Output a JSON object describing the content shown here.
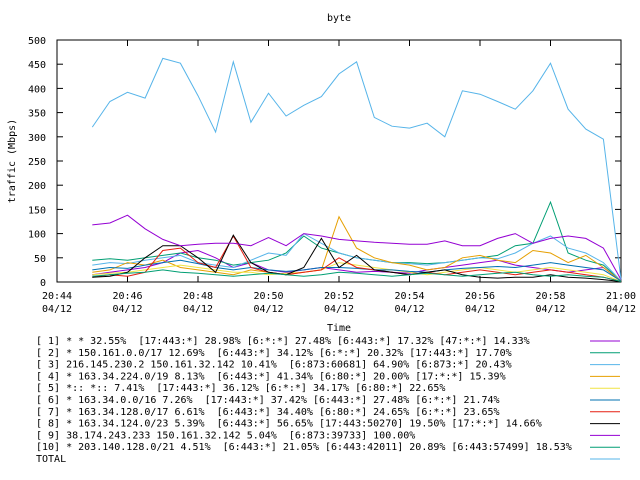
{
  "chart_data": {
    "type": "line",
    "title": "byte",
    "x_label": "Time",
    "y_label": "traffic (Mbps)",
    "x": [
      1245,
      1245.5,
      1246,
      1246.5,
      1247,
      1247.5,
      1248,
      1248.5,
      1249,
      1249.5,
      1250,
      1250.5,
      1251,
      1251.5,
      1252,
      1252.5,
      1253,
      1253.5,
      1254,
      1254.5,
      1255,
      1255.5,
      1256,
      1256.5,
      1257,
      1257.5,
      1258,
      1258.5,
      1259,
      1259.5,
      1260
    ],
    "xlim": [
      1244,
      1260
    ],
    "xticks": [
      {
        "value": 1244,
        "label": "20:44\n04/12"
      },
      {
        "value": 1246,
        "label": "20:46\n04/12"
      },
      {
        "value": 1248,
        "label": "20:48\n04/12"
      },
      {
        "value": 1250,
        "label": "20:50\n04/12"
      },
      {
        "value": 1252,
        "label": "20:52\n04/12"
      },
      {
        "value": 1254,
        "label": "20:54\n04/12"
      },
      {
        "value": 1256,
        "label": "20:56\n04/12"
      },
      {
        "value": 1258,
        "label": "20:58\n04/12"
      },
      {
        "value": 1260,
        "label": "21:00\n04/12"
      }
    ],
    "ylim": [
      0,
      500
    ],
    "yticks": [
      0,
      50,
      100,
      150,
      200,
      250,
      300,
      350,
      400,
      450,
      500
    ],
    "series": [
      {
        "name": "[ 1] * * 32.55%  [17:443:*] 28.98% [6:*:*] 27.48% [6:443:*] 17.32% [47:*:*] 14.33%",
        "color": "#9400d3",
        "values": [
          15,
          20,
          25,
          30,
          40,
          60,
          65,
          50,
          30,
          40,
          25,
          20,
          25,
          30,
          25,
          20,
          22,
          20,
          18,
          25,
          30,
          35,
          40,
          45,
          35,
          30,
          25,
          20,
          25,
          30,
          2
        ]
      },
      {
        "name": "[ 2] * 150.161.0.0/17 12.69%  [6:443:*] 34.12% [6:*:*] 20.32% [17:443:*] 17.70%",
        "color": "#009e73",
        "values": [
          45,
          48,
          45,
          50,
          55,
          60,
          50,
          45,
          35,
          40,
          45,
          60,
          95,
          70,
          60,
          50,
          45,
          40,
          40,
          38,
          40,
          45,
          50,
          55,
          75,
          80,
          165,
          60,
          45,
          35,
          2
        ]
      },
      {
        "name": "[ 3] 216.145.230.2 150.161.32.142 10.41%  [6:873:60681] 64.90% [6:873:*] 20.43%",
        "color": "#56b4e9",
        "values": [
          35,
          40,
          38,
          45,
          50,
          55,
          40,
          35,
          30,
          45,
          60,
          55,
          100,
          80,
          60,
          50,
          45,
          40,
          38,
          35,
          40,
          45,
          50,
          48,
          60,
          80,
          95,
          70,
          60,
          40,
          2
        ]
      },
      {
        "name": "[ 4] * 163.34.224.0/19 8.13%  [6:443:*] 41.34% [6:80:*] 20.00% [17:*:*] 15.39%",
        "color": "#e69f00",
        "values": [
          20,
          25,
          40,
          35,
          45,
          30,
          25,
          20,
          15,
          25,
          20,
          15,
          20,
          25,
          135,
          70,
          50,
          40,
          35,
          25,
          30,
          50,
          55,
          45,
          40,
          65,
          60,
          40,
          55,
          30,
          2
        ]
      },
      {
        "name": "[ 5] *:: *:: 7.41%  [17:443:*] 36.12% [6:*:*] 34.17% [6:80:*] 22.65%",
        "color": "#f0e442",
        "values": [
          15,
          18,
          20,
          25,
          30,
          35,
          30,
          25,
          20,
          20,
          15,
          18,
          20,
          25,
          40,
          35,
          30,
          25,
          20,
          15,
          20,
          25,
          30,
          25,
          20,
          25,
          30,
          25,
          20,
          15,
          1
        ]
      },
      {
        "name": "[ 6] * 163.34.0.0/16 7.26%  [17:443:*] 37.42% [6:443:*] 27.48% [6:*:*] 21.74%",
        "color": "#0072b2",
        "values": [
          25,
          30,
          28,
          35,
          40,
          45,
          38,
          30,
          25,
          30,
          25,
          22,
          25,
          30,
          30,
          28,
          25,
          25,
          22,
          20,
          25,
          28,
          30,
          32,
          30,
          35,
          40,
          35,
          30,
          25,
          2
        ]
      },
      {
        "name": "[ 7] * 163.34.128.0/17 6.61%  [6:443:*] 34.40% [6:80:*] 24.65% [6:*:*] 23.65%",
        "color": "#e51e10",
        "values": [
          10,
          15,
          12,
          20,
          65,
          70,
          40,
          30,
          95,
          30,
          20,
          15,
          20,
          25,
          50,
          30,
          25,
          20,
          15,
          20,
          15,
          20,
          25,
          20,
          15,
          20,
          25,
          20,
          15,
          10,
          1
        ]
      },
      {
        "name": "[ 8] * 163.34.124.0/23 5.39%  [6:443:*] 56.65% [17:443:50270] 19.50% [17:*:*] 14.66%",
        "color": "#000000",
        "values": [
          10,
          12,
          20,
          50,
          75,
          75,
          50,
          20,
          97,
          40,
          20,
          15,
          30,
          90,
          30,
          55,
          25,
          20,
          15,
          20,
          25,
          15,
          10,
          8,
          10,
          10,
          15,
          10,
          8,
          5,
          1
        ]
      },
      {
        "name": "[ 9] 38.174.243.233 150.161.32.142 5.04%  [6:873:39733] 100.00%",
        "color": "#9400d3",
        "values": [
          118,
          122,
          138,
          110,
          88,
          75,
          78,
          80,
          80,
          75,
          92,
          75,
          100,
          95,
          88,
          85,
          82,
          80,
          78,
          78,
          85,
          75,
          75,
          90,
          100,
          80,
          90,
          95,
          90,
          70,
          5
        ]
      },
      {
        "name": "[10] * 203.140.128.0/21 4.51%  [6:443:*] 21.05% [6:443:42011] 20.89% [6:443:57499] 18.53%",
        "color": "#009e73",
        "values": [
          12,
          15,
          18,
          20,
          25,
          20,
          18,
          15,
          12,
          15,
          18,
          15,
          12,
          15,
          20,
          18,
          15,
          12,
          15,
          18,
          15,
          12,
          15,
          18,
          20,
          15,
          12,
          15,
          12,
          10,
          1
        ]
      },
      {
        "name": "TOTAL",
        "color": "#56b4e9",
        "values": [
          320,
          373,
          392,
          380,
          462,
          452,
          385,
          310,
          455,
          330,
          390,
          343,
          365,
          383,
          430,
          455,
          340,
          322,
          318,
          328,
          300,
          395,
          388,
          373,
          357,
          395,
          452,
          357,
          316,
          295,
          5
        ]
      }
    ]
  }
}
